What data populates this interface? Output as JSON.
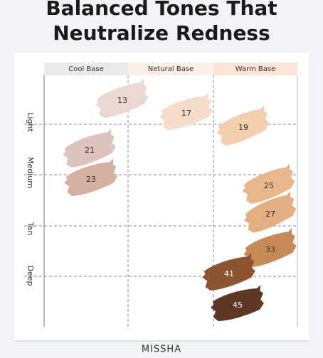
{
  "title": {
    "line1": "Balanced Tones That",
    "line2": "Neutralize Redness"
  },
  "columns": [
    "Cool Base",
    "Netural Base",
    "Warm Base"
  ],
  "rows": [
    "Light",
    "Medium",
    "Tan",
    "Deep"
  ],
  "swatches": [
    {
      "label": "13",
      "color": "#ecd8d2"
    },
    {
      "label": "17",
      "color": "#f6dccb"
    },
    {
      "label": "19",
      "color": "#f4cfae"
    },
    {
      "label": "21",
      "color": "#dcc3bc"
    },
    {
      "label": "23",
      "color": "#d4b0a0"
    },
    {
      "label": "25",
      "color": "#e8b78c"
    },
    {
      "label": "27",
      "color": "#e4ae83"
    },
    {
      "label": "33",
      "color": "#c78a57"
    },
    {
      "label": "41",
      "color": "#8c5430"
    },
    {
      "label": "45",
      "color": "#5e3824"
    }
  ],
  "brand": "MISSHA"
}
